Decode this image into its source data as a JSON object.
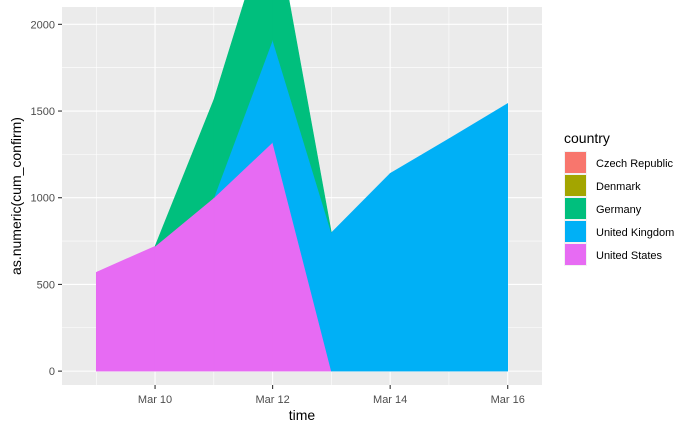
{
  "chart_data": {
    "type": "area",
    "xlabel": "time",
    "ylabel": "as.numeric(cum_confirm)",
    "ylim": [
      -80,
      2100
    ],
    "y_ticks": [
      0,
      500,
      1000,
      1500,
      2000
    ],
    "y_tick_labels": [
      "0",
      "500",
      "1000",
      "1500",
      "2000"
    ],
    "x_ticks": [
      "2020-03-10",
      "2020-03-12",
      "2020-03-14",
      "2020-03-16"
    ],
    "x_tick_labels": [
      "Mar 10",
      "Mar 12",
      "Mar 14",
      "Mar 16"
    ],
    "xlim": [
      "2020-03-08 10:00",
      "2020-03-16 14:00"
    ],
    "stacked": true,
    "grid": true,
    "legend_position": "right",
    "legend_title": "country",
    "series": [
      {
        "name": "Czech Republic",
        "color": "#F8766D",
        "points": []
      },
      {
        "name": "Denmark",
        "color": "#A3A500",
        "points": []
      },
      {
        "name": "Germany",
        "color": "#00BF7D",
        "points": [
          {
            "x": "2020-03-11",
            "y": 565
          },
          {
            "x": "2020-03-12",
            "y": 750
          }
        ]
      },
      {
        "name": "United Kingdom",
        "color": "#00B0F6",
        "points": [
          {
            "x": "2020-03-12",
            "y": 590
          },
          {
            "x": "2020-03-13",
            "y": 798
          },
          {
            "x": "2020-03-14",
            "y": 1140
          },
          {
            "x": "2020-03-15",
            "y": 1340
          },
          {
            "x": "2020-03-16",
            "y": 1543
          }
        ]
      },
      {
        "name": "United States",
        "color": "#E76BF3",
        "points": [
          {
            "x": "2020-03-09",
            "y": 570
          },
          {
            "x": "2020-03-10",
            "y": 720
          },
          {
            "x": "2020-03-11",
            "y": 1000
          },
          {
            "x": "2020-03-12",
            "y": 1320
          }
        ]
      }
    ]
  }
}
